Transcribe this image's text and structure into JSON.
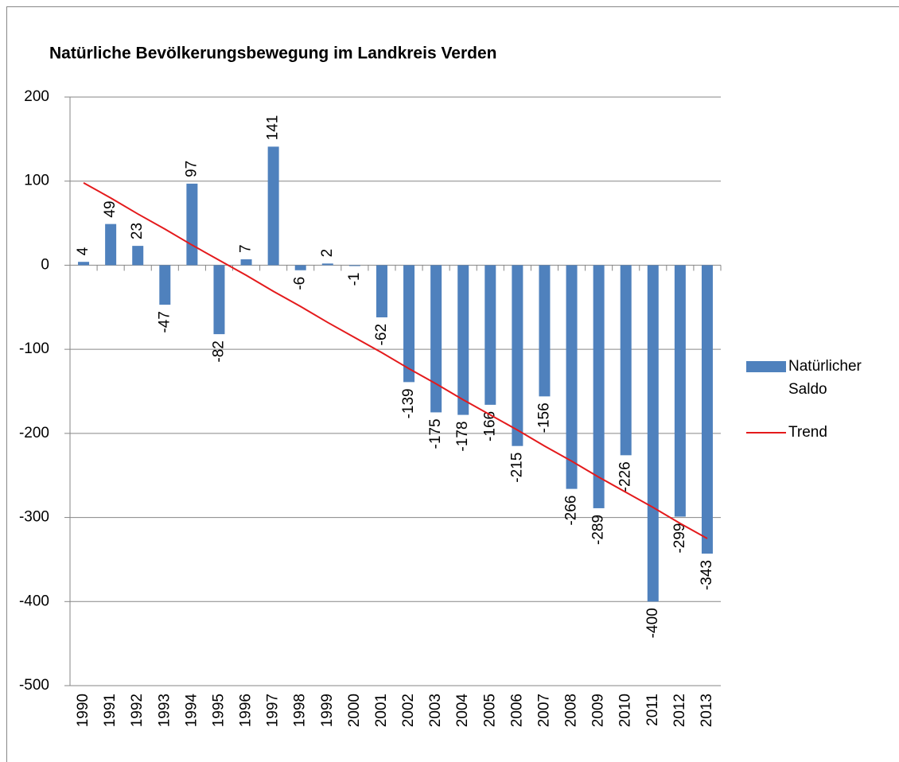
{
  "chart_data": {
    "type": "bar",
    "title": "Natürliche Bevölkerungsbewegung im Landkreis Verden",
    "categories": [
      "1990",
      "1991",
      "1992",
      "1993",
      "1994",
      "1995",
      "1996",
      "1997",
      "1998",
      "1999",
      "2000",
      "2001",
      "2002",
      "2003",
      "2004",
      "2005",
      "2006",
      "2007",
      "2008",
      "2009",
      "2010",
      "2011",
      "2012",
      "2013"
    ],
    "series": [
      {
        "name": "Natürlicher Saldo",
        "color": "#4f81bd",
        "values": [
          4,
          49,
          23,
          -47,
          97,
          -82,
          7,
          141,
          -6,
          2,
          -1,
          -62,
          -139,
          -175,
          -178,
          -166,
          -215,
          -156,
          -266,
          -289,
          -226,
          -400,
          -299,
          -343
        ]
      },
      {
        "name": "Trend",
        "type": "line",
        "color": "#e41a1c",
        "values": [
          98,
          80,
          61,
          43,
          24,
          6,
          -12,
          -31,
          -49,
          -68,
          -86,
          -104,
          -123,
          -141,
          -160,
          -178,
          -196,
          -215,
          -233,
          -252,
          -270,
          -288,
          -307,
          -325
        ]
      }
    ],
    "ylim": [
      -500,
      200
    ],
    "yticks": [
      -500,
      -400,
      -300,
      -200,
      -100,
      0,
      100,
      200
    ],
    "grid": true,
    "legend": "right"
  }
}
